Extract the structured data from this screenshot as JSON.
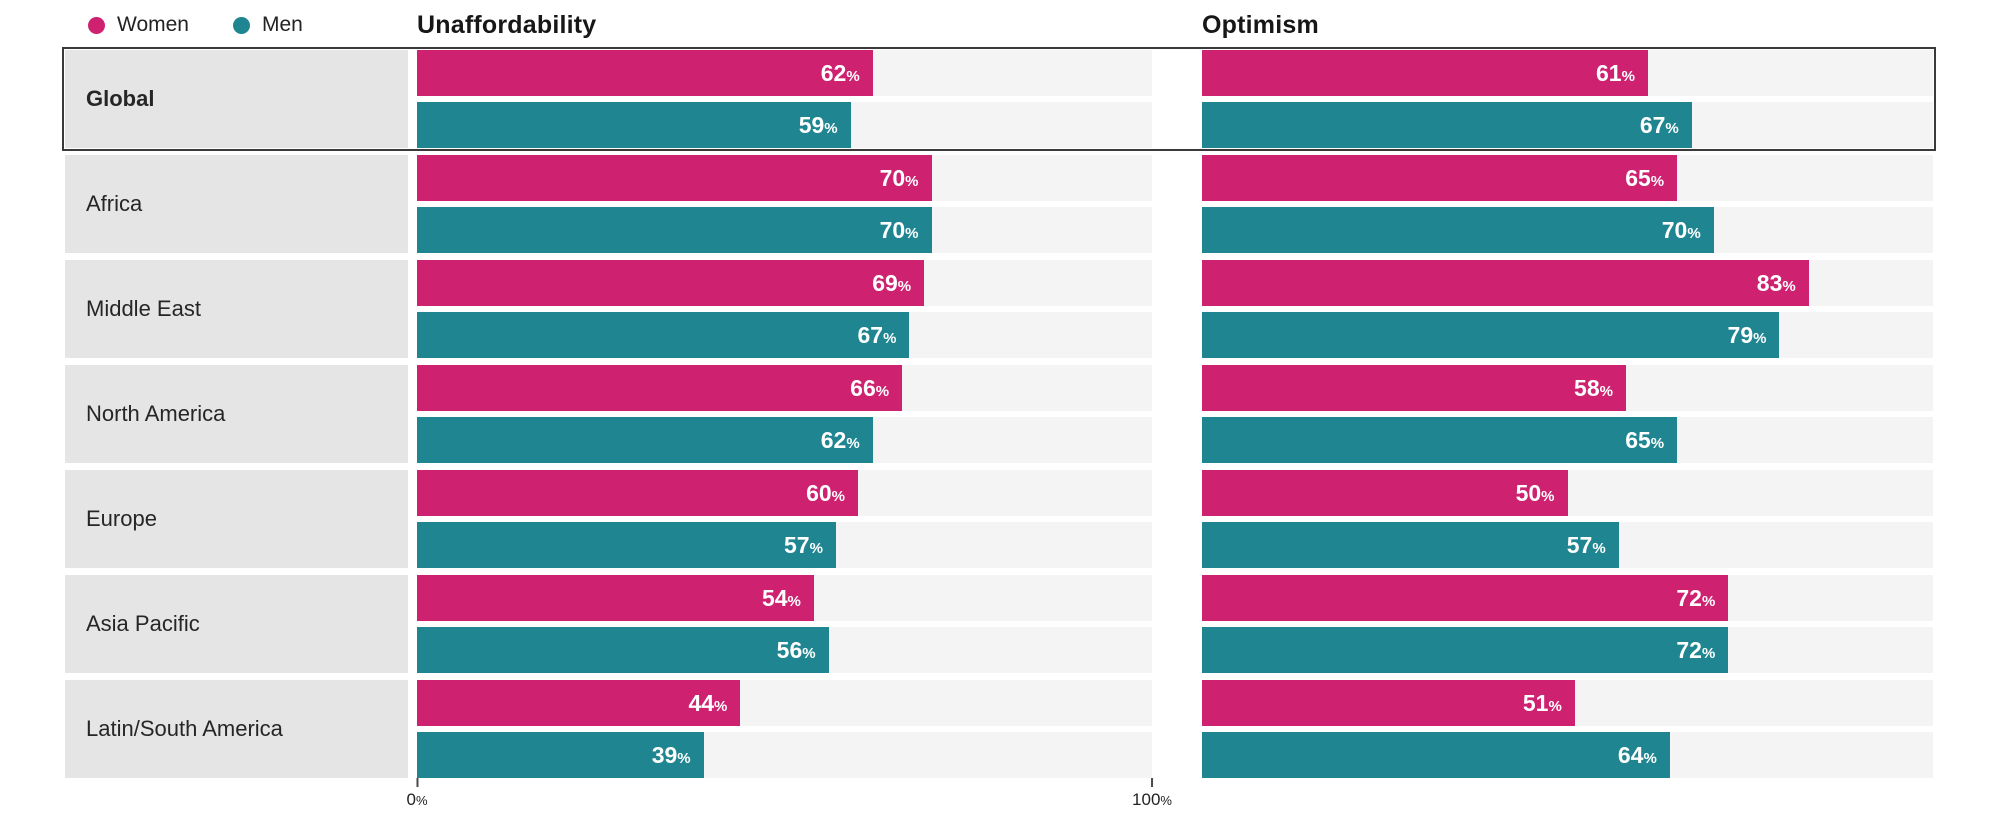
{
  "legend": {
    "women_label": "Women",
    "men_label": "Men"
  },
  "colors": {
    "women": "#ce2170",
    "men": "#1e8591",
    "label_column_bg": "#e5e5e6",
    "track_bg": "#f4f4f4",
    "highlight_border": "#3a3a3a",
    "text": "#232323",
    "value_text": "#ffffff"
  },
  "chart_data": {
    "type": "bar",
    "orientation": "horizontal",
    "grid": false,
    "legend_position": "top-left",
    "value_suffix": "%",
    "categories": [
      "Global",
      "Africa",
      "Middle East",
      "North America",
      "Europe",
      "Asia Pacific",
      "Latin/South America"
    ],
    "highlighted_category": "Global",
    "panels": [
      {
        "title": "Unaffordability",
        "xlim": [
          0,
          100
        ],
        "axis_ticks": [
          "0%",
          "100%"
        ],
        "axis_tick_positions": [
          0,
          100
        ],
        "series": [
          {
            "name": "Women",
            "color_key": "women",
            "values": [
              62,
              70,
              69,
              66,
              60,
              54,
              44
            ]
          },
          {
            "name": "Men",
            "color_key": "men",
            "values": [
              59,
              70,
              67,
              62,
              57,
              56,
              39
            ]
          }
        ]
      },
      {
        "title": "Optimism",
        "xlim": [
          0,
          100
        ],
        "axis_ticks": [],
        "axis_tick_positions": [],
        "series": [
          {
            "name": "Women",
            "color_key": "women",
            "values": [
              61,
              65,
              83,
              58,
              50,
              72,
              51
            ]
          },
          {
            "name": "Men",
            "color_key": "men",
            "values": [
              67,
              70,
              79,
              65,
              57,
              72,
              64
            ]
          }
        ]
      }
    ]
  }
}
